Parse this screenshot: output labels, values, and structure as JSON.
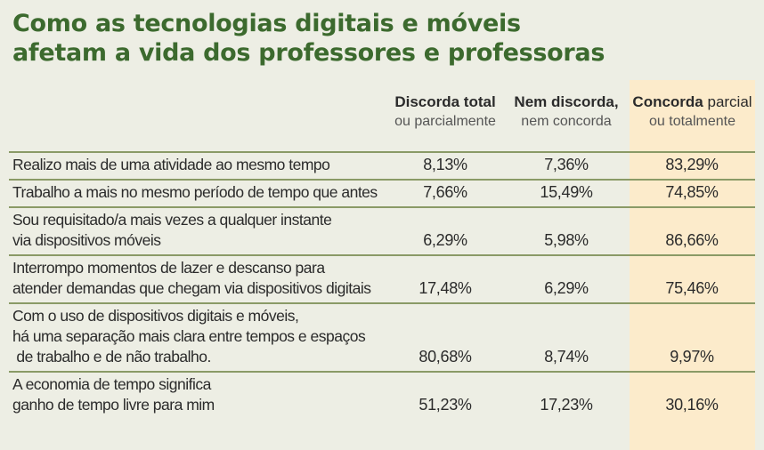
{
  "title": {
    "line1": "Como as tecnologias digitais e móveis",
    "line2": "afetam a vida dos professores e professoras"
  },
  "columns": [
    {
      "line1": "Discorda total",
      "line2": "ou parcialmente"
    },
    {
      "line1": "Nem discorda,",
      "line2": "nem concorda"
    },
    {
      "line1_bold": "Concorda",
      "line1_rest": " parcial",
      "line2": "ou totalmente"
    }
  ],
  "highlight_color": "#fcebcb",
  "title_color": "#3c6a2e",
  "chart_data": {
    "type": "table",
    "title": "Como as tecnologias digitais e móveis afetam a vida dos professores e professoras",
    "columns": [
      "Discorda total ou parcialmente",
      "Nem discorda, nem concorda",
      "Concorda parcial ou totalmente"
    ],
    "rows": [
      {
        "label": "Realizo mais de uma atividade ao mesmo tempo",
        "values": [
          "8,13%",
          "7,36%",
          "83,29%"
        ]
      },
      {
        "label": "Trabalho a mais no mesmo período de tempo que antes",
        "values": [
          "7,66%",
          "15,49%",
          "74,85%"
        ]
      },
      {
        "label": "Sou requisitado/a mais vezes a qualquer instante\nvia dispositivos móveis",
        "values": [
          "6,29%",
          "5,98%",
          "86,66%"
        ]
      },
      {
        "label": "Interrompo momentos de lazer e descanso para\natender demandas que chegam via dispositivos digitais",
        "values": [
          "17,48%",
          "6,29%",
          "75,46%"
        ]
      },
      {
        "label": "Com o uso de dispositivos digitais e móveis,\nhá uma separação mais clara entre tempos e espaços\n de trabalho e de não trabalho.",
        "values": [
          "80,68%",
          "8,74%",
          "9,97%"
        ]
      },
      {
        "label": "A economia de tempo significa\nganho de tempo livre para mim",
        "values": [
          "51,23%",
          "17,23%",
          "30,16%"
        ]
      }
    ]
  }
}
